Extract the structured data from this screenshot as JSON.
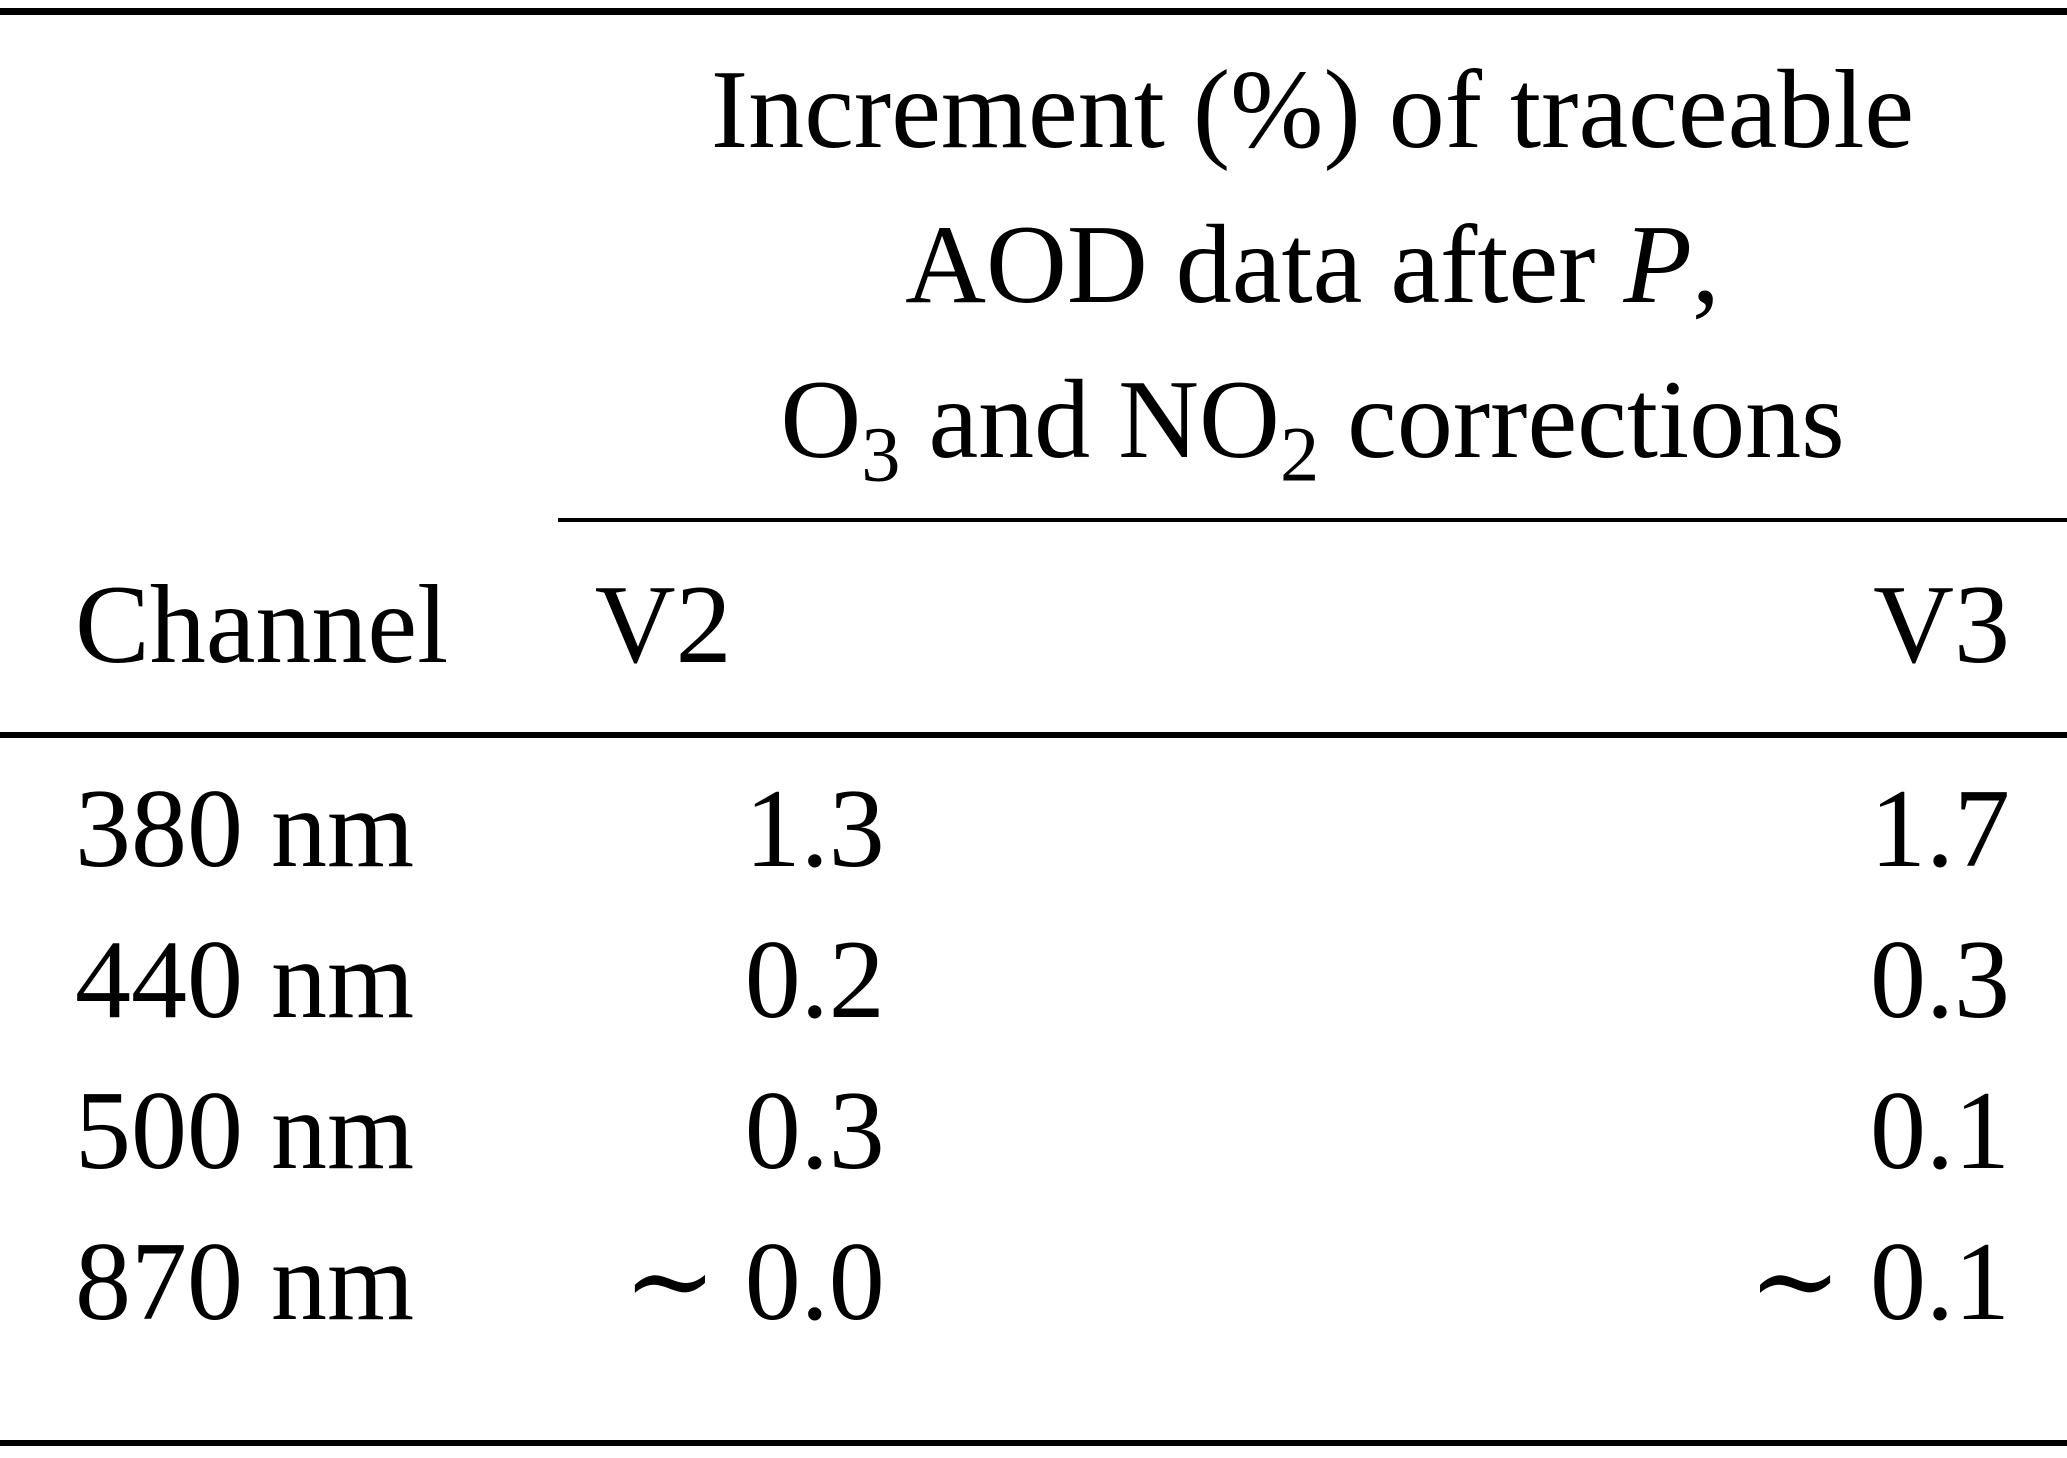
{
  "table": {
    "span_header": {
      "line1": "Increment (%) of traceable",
      "line2_pre": "AOD data after ",
      "line2_var": "P",
      "line2_post": ",",
      "line3_o": "O",
      "line3_o_sub": "3",
      "line3_and": " and NO",
      "line3_no2_sub": "2",
      "line3_post": " corrections"
    },
    "columns": {
      "channel": "Channel",
      "v2": "V2",
      "v3": "V3"
    },
    "rows": [
      {
        "channel": "380 nm",
        "v2": "1.3",
        "v3": "1.7"
      },
      {
        "channel": "440 nm",
        "v2": "0.2",
        "v3": "0.3"
      },
      {
        "channel": "500 nm",
        "v2": "0.3",
        "v3": "0.1"
      },
      {
        "channel": "870 nm",
        "v2": "∼ 0.0",
        "v3": "∼ 0.1"
      }
    ],
    "colors": {
      "text": "#000000",
      "background": "#ffffff",
      "rule": "#000000"
    }
  }
}
